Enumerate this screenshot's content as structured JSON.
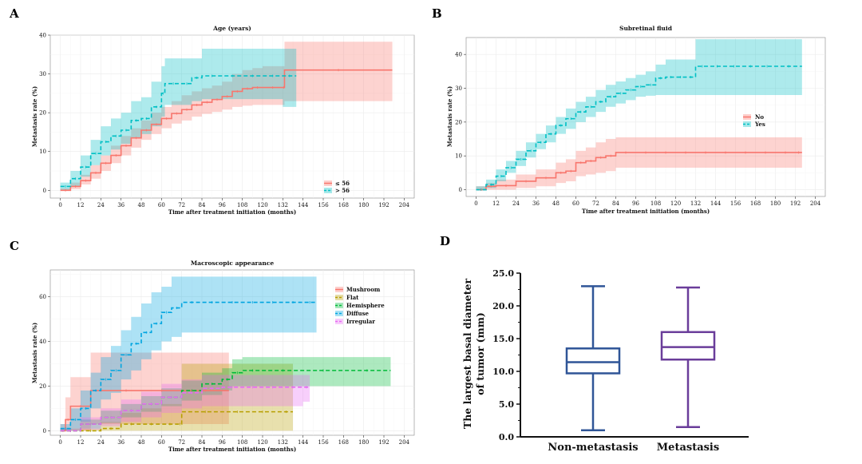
{
  "panels": {
    "A": {
      "letter": "A",
      "title": "Age (years)",
      "xlabel": "Time after treatment initiation (months)",
      "ylabel": "Metastasis rate (%)",
      "xticks": [
        "0",
        "12",
        "24",
        "36",
        "48",
        "60",
        "72",
        "84",
        "96",
        "108",
        "120",
        "132",
        "144",
        "156",
        "168",
        "180",
        "192",
        "204"
      ],
      "yticks": [
        "0",
        "10",
        "20",
        "30",
        "40"
      ],
      "legend": [
        "≤ 56",
        "> 56"
      ]
    },
    "B": {
      "letter": "B",
      "title": "Subretinal fluid",
      "xlabel": "Time after treatment initiation (months)",
      "ylabel": "Metastasis rate (%)",
      "xticks": [
        "0",
        "12",
        "24",
        "36",
        "48",
        "60",
        "72",
        "84",
        "96",
        "108",
        "120",
        "132",
        "144",
        "156",
        "168",
        "180",
        "192",
        "204"
      ],
      "yticks": [
        "0",
        "10",
        "20",
        "30",
        "40"
      ],
      "legend": [
        "No",
        "Yes"
      ]
    },
    "C": {
      "letter": "C",
      "title": "Macroscopic appearance",
      "xlabel": "Time after treatment initiation (months)",
      "ylabel": "Metastasis rate (%)",
      "xticks": [
        "0",
        "12",
        "24",
        "36",
        "48",
        "60",
        "72",
        "84",
        "96",
        "108",
        "120",
        "132",
        "144",
        "156",
        "168",
        "180",
        "192",
        "204"
      ],
      "yticks": [
        "0",
        "20",
        "40",
        "60"
      ],
      "legend": [
        "Mushroom",
        "Flat",
        "Hemisphere",
        "Diffuse",
        "Irregular"
      ]
    },
    "D": {
      "letter": "D",
      "ylabel_line1": "The largest basal diameter",
      "ylabel_line2": "of tumor (mm)",
      "yticks": [
        "0.0",
        "5.0",
        "10.0",
        "15.0",
        "20.0",
        "25.0"
      ],
      "categories": [
        "Non-metastasis",
        "Metastasis"
      ]
    }
  },
  "colors": {
    "red": "#F8766D",
    "teal": "#00BFC4",
    "mushroom": "#F8766D",
    "flat": "#B79F00",
    "hemisphere": "#00BA38",
    "diffuse": "#00A5E0",
    "irregular": "#E76BF3",
    "box_nonmet": "#2F5597",
    "box_met": "#6A3D9A"
  },
  "chart_data": [
    {
      "panel": "A",
      "type": "line",
      "title": "Age (years)",
      "xlabel": "Time after treatment initiation (months)",
      "ylabel": "Metastasis rate (%)",
      "xlim": [
        -6,
        210
      ],
      "ylim": [
        -2,
        40
      ],
      "series": [
        {
          "name": "≤ 56",
          "color": "#F8766D",
          "dash": false,
          "x": [
            0,
            6,
            12,
            18,
            24,
            30,
            36,
            42,
            48,
            54,
            60,
            66,
            72,
            78,
            84,
            90,
            96,
            102,
            108,
            114,
            120,
            132,
            133,
            197
          ],
          "y": [
            0,
            1,
            2.5,
            4.5,
            7,
            9,
            11.5,
            13.5,
            15.5,
            17,
            18.5,
            19.8,
            20.8,
            22,
            22.7,
            23.4,
            24.2,
            25.5,
            26.2,
            26.5,
            26.5,
            26.5,
            31,
            31
          ],
          "lower": [
            0,
            0.3,
            1.5,
            3,
            5,
            7,
            9,
            11,
            13,
            14.5,
            16,
            17.2,
            18,
            19,
            19.7,
            20.2,
            20.8,
            21.5,
            21.8,
            22,
            22,
            22,
            23,
            23
          ],
          "upper": [
            0.5,
            2,
            4,
            6.5,
            9,
            11.5,
            14,
            16,
            18,
            20,
            21.5,
            23,
            24.5,
            25.5,
            26.3,
            27,
            28,
            30,
            31,
            31.5,
            32,
            32,
            38.3,
            38.3
          ]
        },
        {
          "name": "> 56",
          "color": "#00BFC4",
          "dash": true,
          "x": [
            0,
            6,
            12,
            18,
            24,
            30,
            36,
            42,
            48,
            54,
            60,
            62,
            72,
            78,
            84,
            96,
            108,
            120,
            132,
            140
          ],
          "y": [
            1,
            3,
            6,
            9.5,
            12.5,
            14,
            15.5,
            18,
            18.5,
            21.5,
            25,
            27.5,
            27.5,
            29,
            29.5,
            29.5,
            29.5,
            29.5,
            29.5,
            29.5
          ],
          "lower": [
            0,
            1,
            3.5,
            6.5,
            9,
            10.5,
            12,
            13.5,
            14.5,
            16.5,
            19,
            22,
            22,
            23,
            23.5,
            23.5,
            23.5,
            23.5,
            21.5,
            21.5
          ],
          "upper": [
            2,
            5,
            9,
            13,
            16.5,
            18.5,
            20,
            23,
            24,
            28,
            32,
            34,
            34,
            34,
            36.5,
            36.5,
            36.5,
            36.5,
            36.5,
            36.5
          ]
        }
      ]
    },
    {
      "panel": "B",
      "type": "line",
      "title": "Subretinal fluid",
      "xlabel": "Time after treatment initiation (months)",
      "ylabel": "Metastasis rate (%)",
      "xlim": [
        -6,
        210
      ],
      "ylim": [
        -2,
        45
      ],
      "series": [
        {
          "name": "No",
          "color": "#F8766D",
          "dash": false,
          "x": [
            0,
            6,
            12,
            24,
            36,
            48,
            54,
            60,
            66,
            72,
            78,
            84,
            96,
            108,
            120,
            132,
            144,
            156,
            168,
            180,
            192,
            196
          ],
          "y": [
            0,
            1,
            1.2,
            2.5,
            3.5,
            5,
            5.5,
            8,
            8.5,
            9.5,
            10,
            11,
            11,
            11,
            11,
            11,
            11,
            11,
            11,
            11,
            11,
            11
          ],
          "lower": [
            0,
            0,
            0,
            0.5,
            1,
            2,
            2.5,
            4,
            4.5,
            5,
            5.5,
            6.5,
            6.5,
            6.5,
            6.5,
            6.5,
            6.5,
            6.5,
            6.5,
            6.5,
            6.5,
            6.5
          ],
          "upper": [
            1,
            2,
            3,
            4.5,
            6,
            8,
            9,
            11.5,
            12.5,
            14,
            15,
            15.5,
            15.5,
            15.5,
            15.5,
            15.5,
            15.5,
            15.5,
            15.5,
            15.5,
            15.5,
            15.5
          ]
        },
        {
          "name": "Yes",
          "color": "#00BFC4",
          "dash": true,
          "x": [
            0,
            6,
            12,
            18,
            24,
            30,
            36,
            42,
            48,
            54,
            60,
            66,
            72,
            78,
            84,
            90,
            96,
            102,
            108,
            114,
            120,
            126,
            132,
            140,
            150,
            160,
            170,
            180,
            196
          ],
          "y": [
            0,
            1.5,
            4,
            6.5,
            9,
            11.5,
            14,
            16.5,
            19,
            21,
            23,
            24.5,
            26,
            27.5,
            28.5,
            29.5,
            30.5,
            31,
            33,
            33.3,
            33.3,
            33.3,
            36.5,
            36.5,
            36.5,
            36.5,
            36.5,
            36.5,
            36.5
          ],
          "lower": [
            0,
            0.5,
            2.5,
            5,
            7,
            9.5,
            12,
            14,
            16.5,
            18,
            20,
            21.5,
            23,
            24.5,
            25.5,
            26.5,
            27.5,
            27.8,
            28,
            28,
            28,
            28,
            28,
            28,
            28,
            28,
            28,
            28,
            28
          ],
          "upper": [
            1,
            3,
            6,
            8.5,
            11.5,
            14,
            16.5,
            19,
            21.5,
            24,
            26,
            27.5,
            29.5,
            31,
            32,
            33,
            34,
            35,
            37,
            38.5,
            38.5,
            38.5,
            44.5,
            44.5,
            44.5,
            44.5,
            44.5,
            44.5,
            44.5
          ]
        }
      ]
    },
    {
      "panel": "C",
      "type": "line",
      "title": "Macroscopic appearance",
      "xlabel": "Time after treatment initiation (months)",
      "ylabel": "Metastasis rate (%)",
      "xlim": [
        -6,
        210
      ],
      "ylim": [
        -2,
        72
      ],
      "series": [
        {
          "name": "Mushroom",
          "color": "#F8766D",
          "dash": false,
          "x": [
            0,
            3,
            6,
            18,
            30,
            48,
            72,
            100
          ],
          "y": [
            0,
            5,
            11,
            18,
            18,
            18,
            18,
            18
          ],
          "lower": [
            0,
            0,
            0,
            3,
            3,
            3,
            3,
            3
          ],
          "upper": [
            3,
            15,
            24,
            35,
            35,
            35,
            35,
            35
          ]
        },
        {
          "name": "Flat",
          "color": "#B79F00",
          "dash": true,
          "x": [
            0,
            12,
            24,
            36,
            48,
            60,
            70,
            72,
            100,
            110,
            130,
            138
          ],
          "y": [
            0,
            0,
            1,
            3,
            3,
            3,
            3,
            8.5,
            8.5,
            8.5,
            8.5,
            8.5
          ],
          "lower": [
            0,
            0,
            0,
            0,
            0,
            0,
            0,
            0,
            0,
            0,
            0,
            0
          ],
          "upper": [
            0,
            1,
            4,
            8,
            10,
            12,
            12,
            30,
            30,
            30,
            30,
            30
          ]
        },
        {
          "name": "Hemisphere",
          "color": "#00BA38",
          "dash": true,
          "x": [
            0,
            12,
            24,
            36,
            48,
            60,
            72,
            84,
            96,
            102,
            108,
            120,
            144,
            168,
            196
          ],
          "y": [
            0,
            3,
            6,
            9,
            12,
            15,
            18,
            21,
            23,
            26,
            27,
            27,
            27,
            27,
            27
          ],
          "lower": [
            0,
            1,
            3.5,
            6,
            8.5,
            11,
            13.5,
            16,
            18,
            20,
            20,
            20,
            20,
            20,
            20
          ],
          "upper": [
            1,
            5,
            9,
            12,
            15.5,
            19,
            22.5,
            26,
            28,
            32,
            33,
            33,
            33,
            33,
            33
          ]
        },
        {
          "name": "Diffuse",
          "color": "#00A5E0",
          "dash": true,
          "x": [
            0,
            6,
            12,
            18,
            24,
            30,
            36,
            42,
            48,
            54,
            60,
            66,
            72,
            84,
            96,
            108,
            120,
            132,
            144,
            152
          ],
          "y": [
            1,
            5,
            10,
            18,
            23,
            27,
            34,
            39,
            44,
            48,
            53,
            55,
            57.5,
            57.5,
            57.5,
            57.5,
            57.5,
            57.5,
            57.5,
            57.5
          ],
          "lower": [
            0,
            1,
            4,
            10,
            14,
            17,
            23,
            27,
            32,
            36,
            40,
            42,
            44,
            44,
            44,
            44,
            44,
            44,
            44,
            42
          ],
          "upper": [
            3,
            10,
            18,
            26,
            33,
            38,
            45,
            51,
            57,
            62,
            64.5,
            69,
            69,
            69,
            69,
            69,
            69,
            69,
            69,
            69
          ]
        },
        {
          "name": "Irregular",
          "color": "#E76BF3",
          "dash": true,
          "x": [
            0,
            12,
            24,
            36,
            48,
            60,
            72,
            84,
            96,
            108,
            120,
            132,
            144,
            148
          ],
          "y": [
            0,
            3,
            6,
            9,
            12,
            15,
            17,
            19,
            19.5,
            19.5,
            19.5,
            19.5,
            19.5,
            19.5
          ],
          "lower": [
            0,
            0.5,
            2,
            4,
            6,
            8,
            10,
            11,
            11,
            11,
            11,
            11,
            13,
            13
          ],
          "upper": [
            1,
            6,
            10,
            14,
            17.5,
            21,
            23,
            25,
            25,
            25,
            25,
            25,
            25,
            25
          ]
        }
      ]
    },
    {
      "panel": "D",
      "type": "box",
      "title": "",
      "xlabel": "",
      "ylabel": "The largest basal diameter of tumor (mm)",
      "ylim": [
        0,
        25
      ],
      "categories": [
        "Non-metastasis",
        "Metastasis"
      ],
      "boxes": [
        {
          "name": "Non-metastasis",
          "min": 1.0,
          "q1": 9.7,
          "median": 11.4,
          "q3": 13.5,
          "max": 23.0
        },
        {
          "name": "Metastasis",
          "min": 1.5,
          "q1": 11.8,
          "median": 13.7,
          "q3": 16.0,
          "max": 22.8
        }
      ]
    }
  ]
}
